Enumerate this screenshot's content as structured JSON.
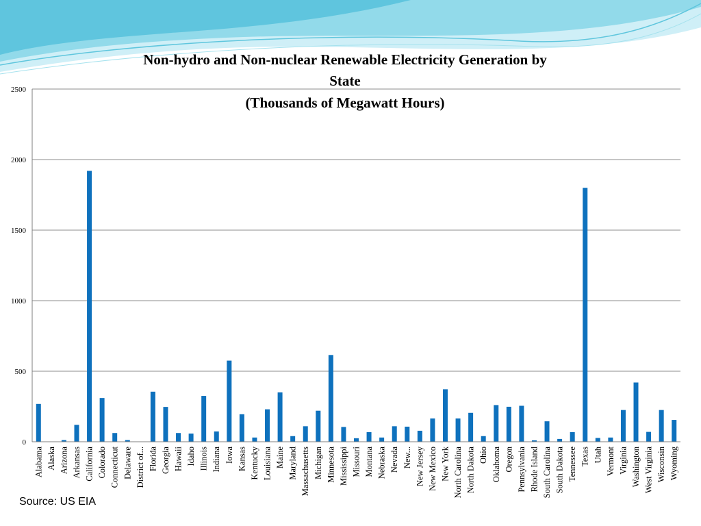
{
  "colors": {
    "bar": "#0E71BD",
    "grid": "#8C8C8C",
    "axis": "#7F7F7F",
    "wave_light": "#CFEFF7",
    "wave_mid": "#7DD3E6",
    "wave_dark": "#34B5D3"
  },
  "source": "Source: US EIA",
  "chart_data": {
    "type": "bar",
    "title": [
      "Non-hydro and Non-nuclear Renewable Electricity Generation by",
      "State",
      "(Thousands of Megawatt Hours)"
    ],
    "xlabel": "",
    "ylabel": "",
    "ylim": [
      0,
      2500
    ],
    "yticks": [
      0,
      500,
      1000,
      1500,
      2000,
      2500
    ],
    "grid": true,
    "legend": "none",
    "categories": [
      "Alabama",
      "Alaska",
      "Arizona",
      "Arkansas",
      "California",
      "Colorado",
      "Connecticut",
      "Delaware",
      "District of...",
      "Florida",
      "Georgia",
      "Hawaii",
      "Idaho",
      "Illinois",
      "Indiana",
      "Iowa",
      "Kansas",
      "Kentucky",
      "Louisiana",
      "Maine",
      "Maryland",
      "Massachusetts",
      "Michigan",
      "Minnesota",
      "Mississippi",
      "Missouri",
      "Montana",
      "Nebraska",
      "Nevada",
      "New...",
      "New Jersey",
      "New Mexico",
      "New York",
      "North Carolina",
      "North Dakota",
      "Ohio",
      "Oklahoma",
      "Oregon",
      "Pennsylvania",
      "Rhode Island",
      "South Carolina",
      "South Dakota",
      "Tennessee",
      "Texas",
      "Utah",
      "Vermont",
      "Virginia",
      "Washington",
      "West Virginia",
      "Wisconsin",
      "Wyoming"
    ],
    "values": [
      268,
      1,
      12,
      120,
      1920,
      310,
      62,
      12,
      0,
      355,
      247,
      62,
      58,
      325,
      73,
      575,
      195,
      30,
      230,
      350,
      40,
      110,
      220,
      615,
      105,
      25,
      68,
      30,
      110,
      107,
      78,
      165,
      372,
      165,
      205,
      40,
      260,
      248,
      255,
      10,
      145,
      20,
      68,
      1800,
      27,
      30,
      225,
      420,
      70,
      225,
      155
    ]
  }
}
